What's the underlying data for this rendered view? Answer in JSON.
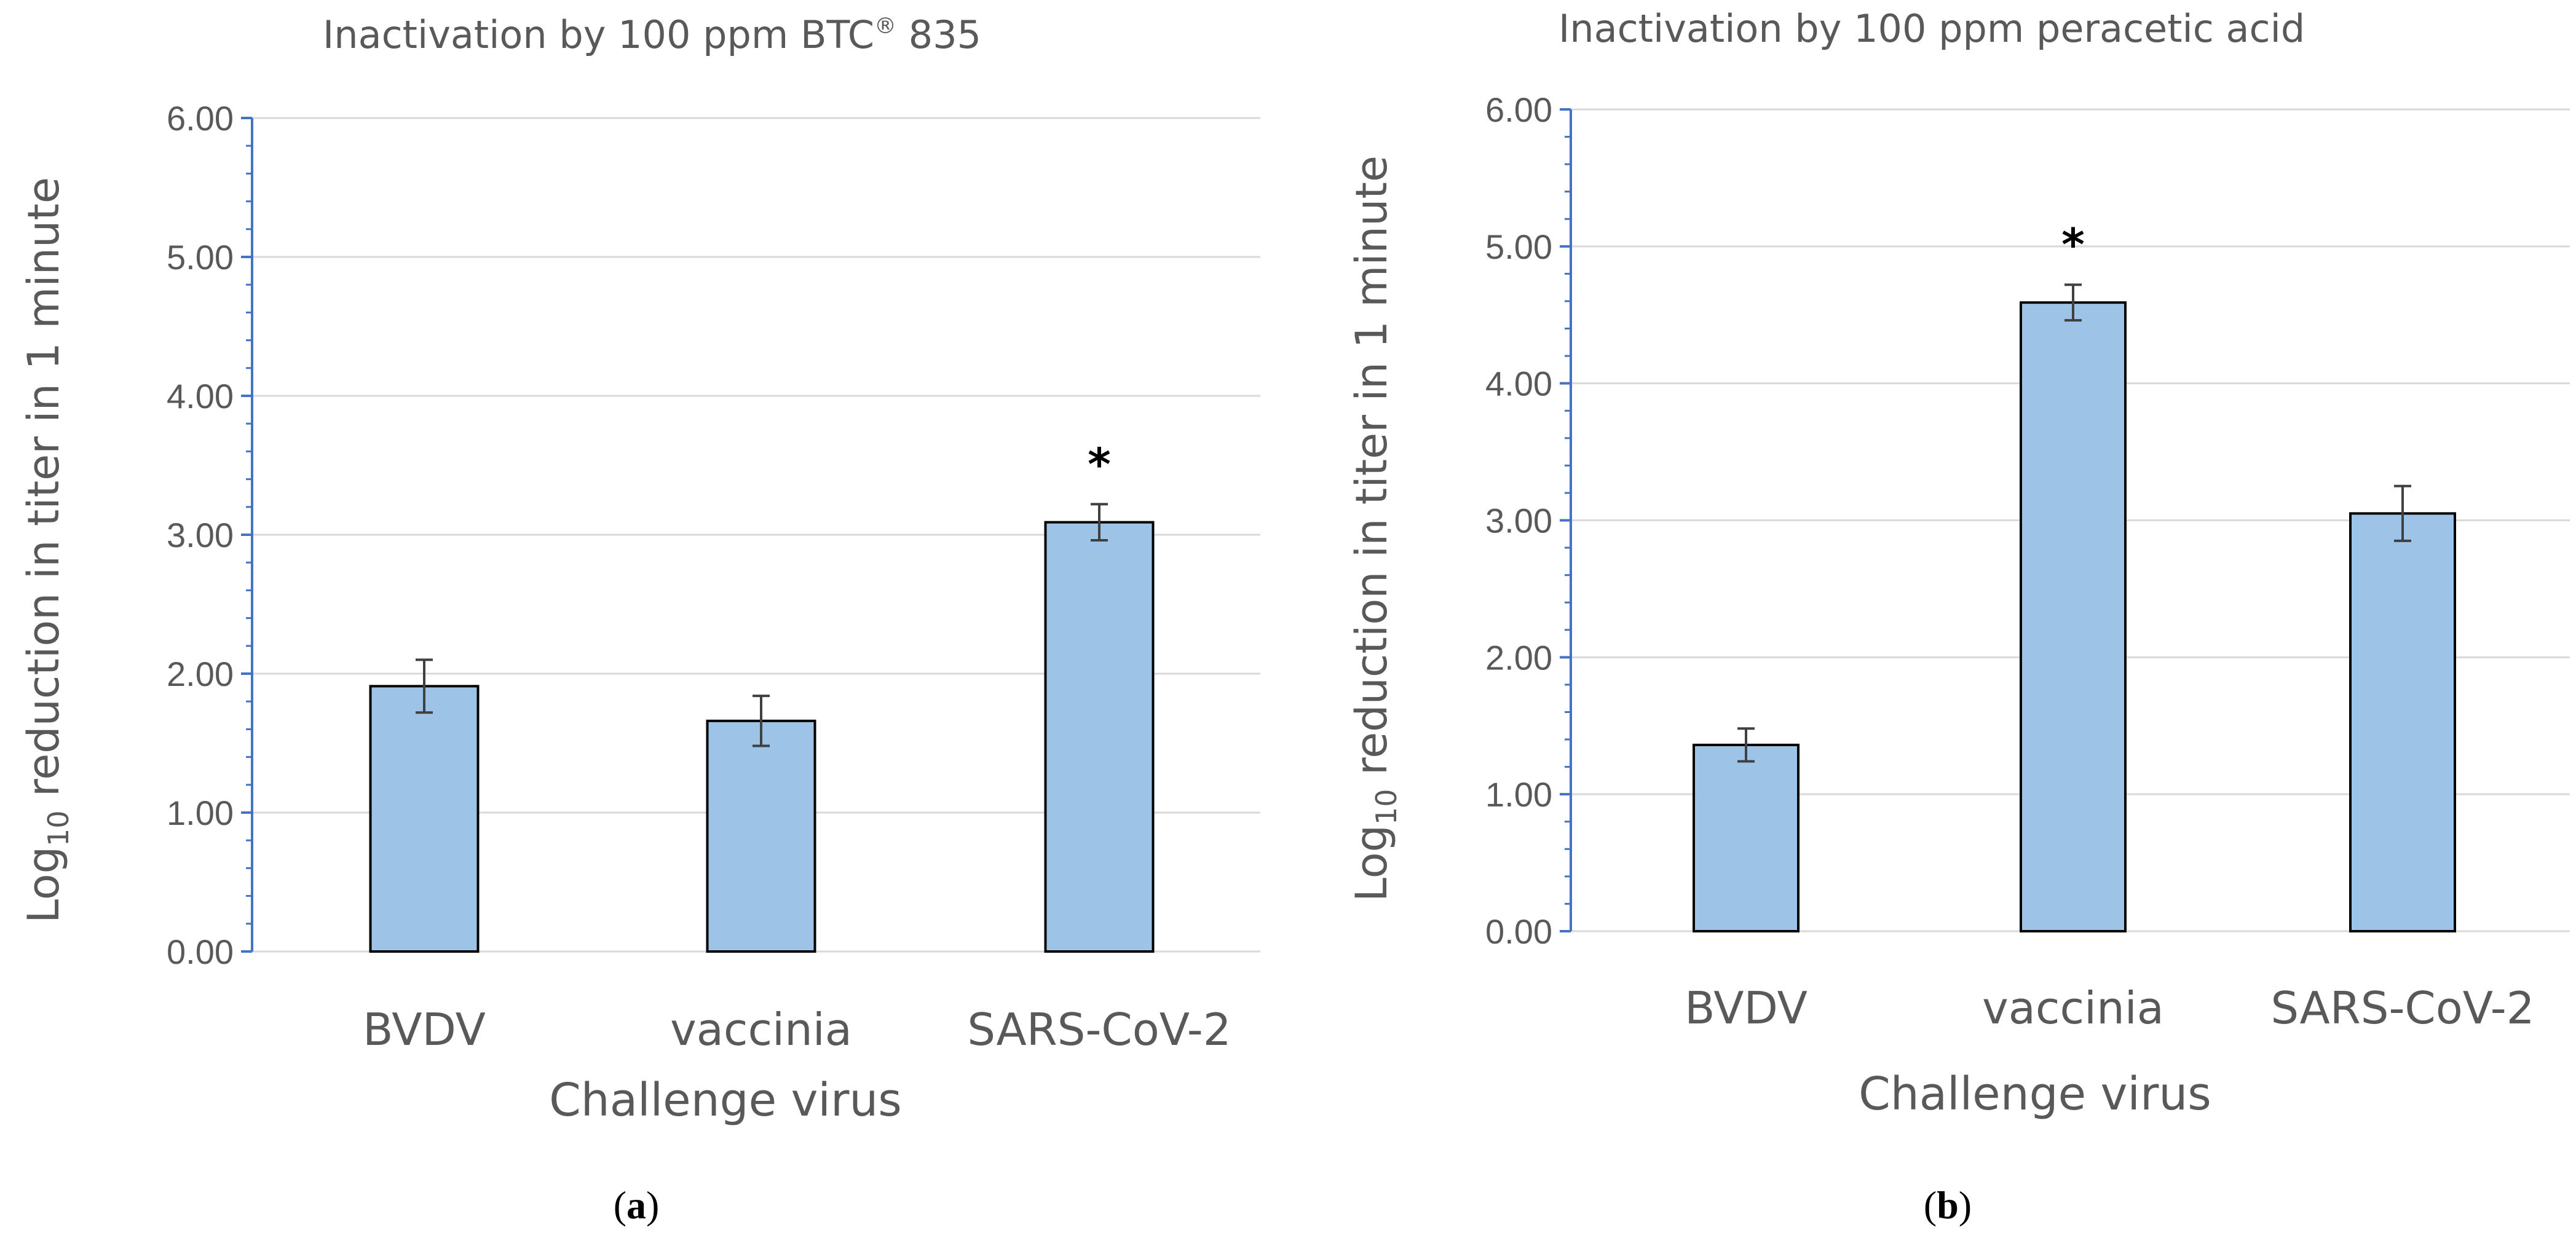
{
  "chart_data": [
    {
      "type": "bar",
      "title_main": "Inactivation by 100 ppm BTC",
      "title_sup": "®",
      "title_tail": " 835",
      "ylabel_pre": "Log",
      "ylabel_sub": "10",
      "ylabel_post": " reduction in titer in 1 minute",
      "xlabel": "Challenge virus",
      "ylim": [
        0,
        6
      ],
      "yticks": [
        "0.00",
        "1.00",
        "2.00",
        "3.00",
        "4.00",
        "5.00",
        "6.00"
      ],
      "categories": [
        "BVDV",
        "vaccinia",
        "SARS-CoV-2"
      ],
      "values": [
        1.91,
        1.66,
        3.09
      ],
      "errors": [
        0.19,
        0.18,
        0.13
      ],
      "annotations": [
        "",
        "",
        "*"
      ],
      "caption_letter": "a",
      "bar_color": "#9dc3e6",
      "axis_color": "#4472c4",
      "grid": true
    },
    {
      "type": "bar",
      "title_main": "Inactivation by 100 ppm peracetic acid",
      "title_sup": "",
      "title_tail": "",
      "ylabel_pre": "Log",
      "ylabel_sub": "10",
      "ylabel_post": " reduction in titer in 1 minute",
      "xlabel": "Challenge virus",
      "ylim": [
        0,
        6
      ],
      "yticks": [
        "0.00",
        "1.00",
        "2.00",
        "3.00",
        "4.00",
        "5.00",
        "6.00"
      ],
      "categories": [
        "BVDV",
        "vaccinia",
        "SARS-CoV-2"
      ],
      "values": [
        1.36,
        4.59,
        3.05
      ],
      "errors": [
        0.12,
        0.13,
        0.2
      ],
      "annotations": [
        "",
        "*",
        ""
      ],
      "caption_letter": "b",
      "bar_color": "#9dc3e6",
      "axis_color": "#4472c4",
      "grid": true
    }
  ]
}
